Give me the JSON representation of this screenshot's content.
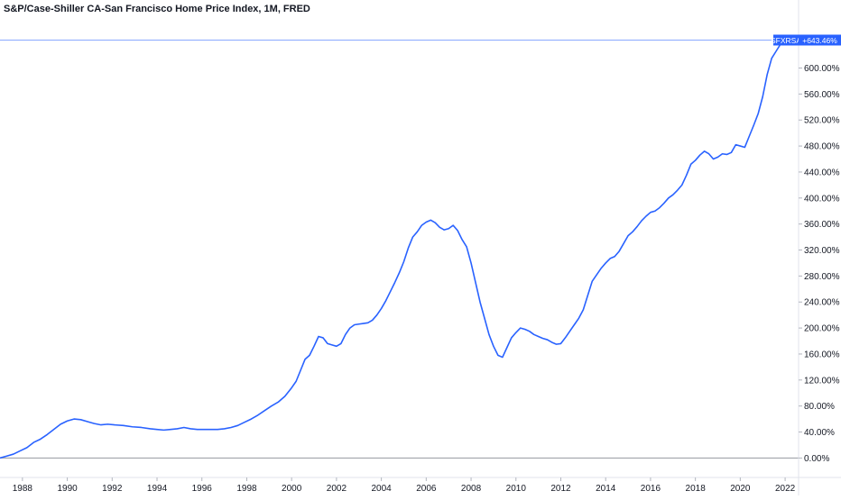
{
  "chart_data": {
    "type": "line",
    "title": "S&P/Case-Shiller CA-San Francisco Home Price Index, 1M, FRED",
    "xlabel": "",
    "ylabel": "",
    "xlim": [
      1987.0,
      2022.6
    ],
    "ylim": [
      -5,
      670
    ],
    "grid": false,
    "x_ticks": [
      1988,
      1990,
      1992,
      1994,
      1996,
      1998,
      2000,
      2002,
      2004,
      2006,
      2008,
      2010,
      2012,
      2014,
      2016,
      2018,
      2020,
      2022
    ],
    "y_ticks": [
      {
        "value": 0,
        "label": "0.00%"
      },
      {
        "value": 40,
        "label": "40.00%"
      },
      {
        "value": 80,
        "label": "80.00%"
      },
      {
        "value": 120,
        "label": "120.00%"
      },
      {
        "value": 160,
        "label": "160.00%"
      },
      {
        "value": 200,
        "label": "200.00%"
      },
      {
        "value": 240,
        "label": "240.00%"
      },
      {
        "value": 280,
        "label": "280.00%"
      },
      {
        "value": 320,
        "label": "320.00%"
      },
      {
        "value": 360,
        "label": "360.00%"
      },
      {
        "value": 400,
        "label": "400.00%"
      },
      {
        "value": 440,
        "label": "440.00%"
      },
      {
        "value": 480,
        "label": "480.00%"
      },
      {
        "value": 520,
        "label": "520.00%"
      },
      {
        "value": 560,
        "label": "560.00%"
      },
      {
        "value": 600,
        "label": "600.00%"
      }
    ],
    "series": [
      {
        "symbol": "SFXRSA",
        "last_value_label": "+643.46%",
        "color": "#2962ff",
        "x": [
          1987.0,
          1987.3,
          1987.6,
          1987.9,
          1988.2,
          1988.5,
          1988.8,
          1989.1,
          1989.4,
          1989.7,
          1990.0,
          1990.3,
          1990.6,
          1990.9,
          1991.2,
          1991.5,
          1991.8,
          1992.1,
          1992.5,
          1992.9,
          1993.3,
          1993.7,
          1994.0,
          1994.3,
          1994.6,
          1994.9,
          1995.2,
          1995.5,
          1995.8,
          1996.1,
          1996.4,
          1996.7,
          1997.0,
          1997.3,
          1997.6,
          1997.9,
          1998.2,
          1998.5,
          1998.8,
          1999.1,
          1999.4,
          1999.7,
          2000.0,
          2000.2,
          2000.4,
          2000.6,
          2000.8,
          2001.0,
          2001.2,
          2001.4,
          2001.6,
          2001.8,
          2002.0,
          2002.2,
          2002.4,
          2002.6,
          2002.8,
          2003.0,
          2003.2,
          2003.4,
          2003.6,
          2003.8,
          2004.0,
          2004.2,
          2004.4,
          2004.6,
          2004.8,
          2005.0,
          2005.2,
          2005.4,
          2005.6,
          2005.8,
          2006.0,
          2006.2,
          2006.4,
          2006.6,
          2006.8,
          2007.0,
          2007.2,
          2007.4,
          2007.6,
          2007.8,
          2008.0,
          2008.2,
          2008.4,
          2008.6,
          2008.8,
          2009.0,
          2009.2,
          2009.4,
          2009.6,
          2009.8,
          2010.0,
          2010.2,
          2010.4,
          2010.6,
          2010.8,
          2011.0,
          2011.2,
          2011.4,
          2011.6,
          2011.8,
          2012.0,
          2012.2,
          2012.4,
          2012.6,
          2012.8,
          2013.0,
          2013.2,
          2013.4,
          2013.6,
          2013.8,
          2014.0,
          2014.2,
          2014.4,
          2014.6,
          2014.8,
          2015.0,
          2015.2,
          2015.4,
          2015.6,
          2015.8,
          2016.0,
          2016.2,
          2016.4,
          2016.6,
          2016.8,
          2017.0,
          2017.2,
          2017.4,
          2017.6,
          2017.8,
          2018.0,
          2018.2,
          2018.4,
          2018.6,
          2018.8,
          2019.0,
          2019.2,
          2019.4,
          2019.6,
          2019.8,
          2020.0,
          2020.2,
          2020.4,
          2020.6,
          2020.8,
          2021.0,
          2021.2,
          2021.4,
          2021.6,
          2021.8,
          2022.0
        ],
        "y": [
          0,
          3,
          6,
          11,
          16,
          24,
          29,
          36,
          44,
          52,
          57,
          60,
          59,
          56,
          53,
          51,
          52,
          51,
          50,
          48,
          47,
          45,
          44,
          43,
          44,
          45,
          47,
          45,
          44,
          44,
          44,
          44,
          45,
          47,
          50,
          55,
          60,
          66,
          73,
          80,
          86,
          95,
          108,
          118,
          135,
          152,
          158,
          172,
          187,
          185,
          176,
          174,
          172,
          176,
          190,
          200,
          205,
          206,
          207,
          208,
          212,
          220,
          230,
          242,
          256,
          270,
          285,
          302,
          323,
          340,
          348,
          358,
          363,
          366,
          362,
          355,
          351,
          353,
          358,
          350,
          336,
          325,
          300,
          270,
          240,
          215,
          190,
          172,
          158,
          155,
          170,
          185,
          193,
          200,
          198,
          195,
          190,
          187,
          184,
          182,
          178,
          175,
          176,
          185,
          195,
          205,
          215,
          228,
          250,
          272,
          282,
          292,
          300,
          307,
          310,
          318,
          330,
          342,
          348,
          356,
          365,
          372,
          378,
          380,
          385,
          392,
          400,
          405,
          412,
          420,
          435,
          452,
          458,
          466,
          472,
          468,
          460,
          463,
          468,
          467,
          470,
          482,
          480,
          478,
          495,
          512,
          530,
          556,
          590,
          615,
          626,
          637,
          643
        ]
      }
    ]
  }
}
